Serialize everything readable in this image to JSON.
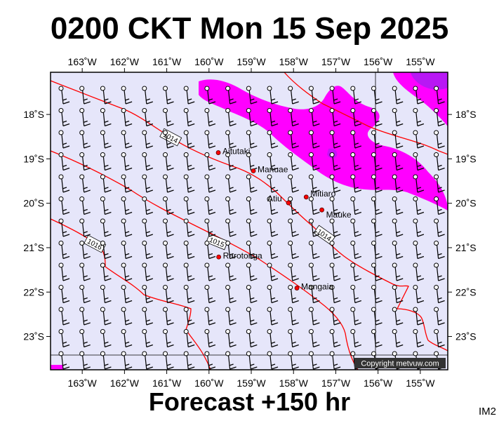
{
  "header": {
    "title": "0200 CKT Mon 15 Sep 2025",
    "forecast": "Forecast +150 hr",
    "code": "IM2"
  },
  "map": {
    "lon_range": [
      -163.75,
      -154.35
    ],
    "lat_range": [
      -23.75,
      -17.05
    ],
    "lon_ticks": [
      {
        "value": -163,
        "label": "163˚W"
      },
      {
        "value": -162,
        "label": "162˚W"
      },
      {
        "value": -161,
        "label": "161˚W"
      },
      {
        "value": -160,
        "label": "160˚W"
      },
      {
        "value": -159,
        "label": "159˚W"
      },
      {
        "value": -158,
        "label": "158˚W"
      },
      {
        "value": -157,
        "label": "157˚W"
      },
      {
        "value": -156,
        "label": "156˚W"
      },
      {
        "value": -155,
        "label": "155˚W"
      }
    ],
    "lat_ticks": [
      {
        "value": -18,
        "label": "18˚S"
      },
      {
        "value": -19,
        "label": "19˚S"
      },
      {
        "value": -20,
        "label": "20˚S"
      },
      {
        "value": -21,
        "label": "21˚S"
      },
      {
        "value": -22,
        "label": "22˚S"
      },
      {
        "value": -23,
        "label": "23˚S"
      }
    ],
    "places": [
      {
        "name": "Aitutaki",
        "lon": -159.78,
        "lat": -18.86
      },
      {
        "name": "Manuae",
        "lon": -158.95,
        "lat": -19.27
      },
      {
        "name": "Mitiaro",
        "lon": -157.7,
        "lat": -19.86
      },
      {
        "name": "Atiu",
        "lon": -158.12,
        "lat": -19.99
      },
      {
        "name": "Mauke",
        "lon": -157.33,
        "lat": -20.15
      },
      {
        "name": "Rarotonga",
        "lon": -159.77,
        "lat": -21.21
      },
      {
        "name": "Mangaia",
        "lon": -157.92,
        "lat": -21.91
      }
    ],
    "isobar_labels": [
      "1014",
      "1014",
      "1015",
      "1016"
    ],
    "copyright": "Copyright metvuw.com",
    "colors": {
      "ocean": "#e6e6fa",
      "rain_light": "#ff00ff",
      "rain_heavy": "#8800ee",
      "isobar": "#ff0000"
    }
  }
}
